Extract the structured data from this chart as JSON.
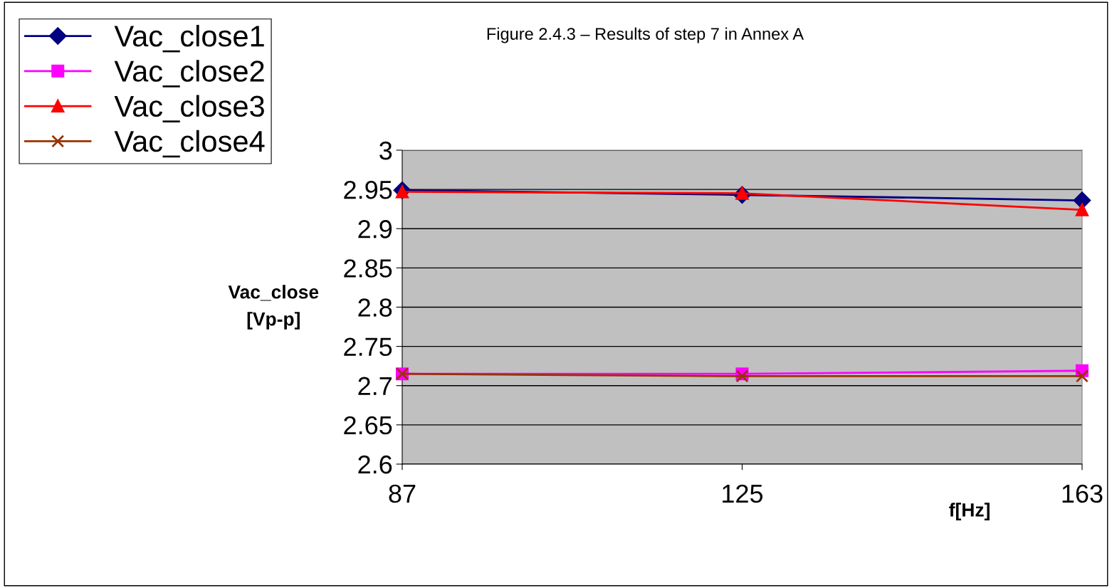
{
  "chart_data": {
    "type": "line",
    "title": "Figure 2.4.3 – Results of step 7 in Annex A",
    "ylabel": "Vac_close\n[Vp-p]",
    "xlabel": "f[Hz]",
    "x": [
      87,
      125,
      163
    ],
    "xlim": [
      87,
      163
    ],
    "xticks": [
      87,
      125,
      163
    ],
    "ylim": [
      2.6,
      3
    ],
    "yticks": [
      2.6,
      2.65,
      2.7,
      2.75,
      2.8,
      2.85,
      2.9,
      2.95,
      3
    ],
    "grid": "y",
    "legend": "top left",
    "series": [
      {
        "name": "Vac_close1",
        "color": "#000080",
        "marker": "diamond",
        "values": [
          2.949,
          2.943,
          2.936
        ]
      },
      {
        "name": "Vac_close2",
        "color": "#ff00ff",
        "marker": "square",
        "values": [
          2.715,
          2.715,
          2.719
        ]
      },
      {
        "name": "Vac_close3",
        "color": "#ff0000",
        "marker": "triangle",
        "values": [
          2.947,
          2.945,
          2.924
        ]
      },
      {
        "name": "Vac_close4",
        "color": "#993300",
        "marker": "cross",
        "values": [
          2.715,
          2.712,
          2.712
        ]
      }
    ]
  }
}
